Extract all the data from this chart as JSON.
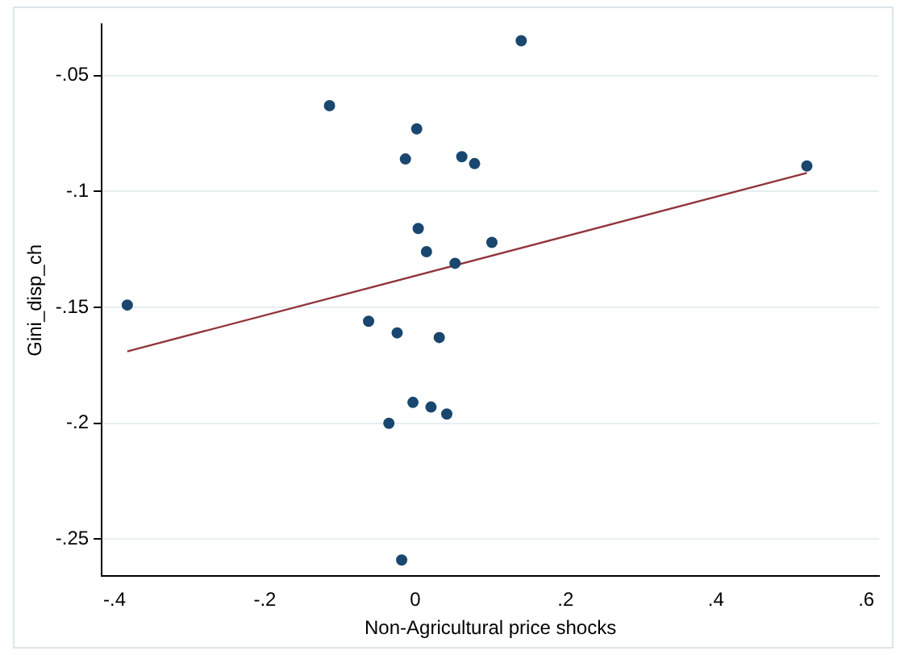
{
  "chart_data": {
    "type": "scatter",
    "xlabel": "Non-Agricultural price shocks",
    "ylabel": "Gini_disp_ch",
    "series": [
      {
        "color": "#1a476f",
        "marker": "circle",
        "x": [
          0.141,
          -0.114,
          0.002,
          -0.013,
          0.062,
          0.079,
          0.521,
          0.004,
          0.015,
          0.102,
          0.053,
          -0.383,
          -0.062,
          -0.024,
          0.032,
          -0.003,
          0.021,
          0.042,
          -0.035,
          -0.018
        ],
        "values": [
          -0.035,
          -0.063,
          -0.073,
          -0.086,
          -0.085,
          -0.088,
          -0.089,
          -0.116,
          -0.126,
          -0.122,
          -0.131,
          -0.149,
          -0.156,
          -0.161,
          -0.163,
          -0.191,
          -0.193,
          -0.196,
          -0.2,
          -0.259
        ]
      },
      {
        "type": "line",
        "color": "#90353b",
        "marker": "none",
        "x": [
          -0.383,
          0.521
        ],
        "values": [
          -0.169,
          -0.092
        ]
      }
    ],
    "xlim": [
      -0.417,
      0.617
    ],
    "xticks": [
      {
        "value": -0.4,
        "label": "-.4"
      },
      {
        "value": -0.2,
        "label": "-.2"
      },
      0,
      {
        "value": 0.2,
        "label": ".2"
      },
      {
        "value": 0.4,
        "label": ".4"
      },
      {
        "value": 0.6,
        "label": ".6"
      }
    ],
    "ylim": [
      -0.266,
      -0.028
    ],
    "yticks": [
      {
        "value": -0.25,
        "label": "-.25"
      },
      {
        "value": -0.2,
        "label": "-.2"
      },
      {
        "value": -0.15,
        "label": "-.15"
      },
      {
        "value": -0.1,
        "label": "-.1"
      },
      {
        "value": -0.05,
        "label": "-.05"
      }
    ],
    "grid": "y",
    "legend": false
  }
}
